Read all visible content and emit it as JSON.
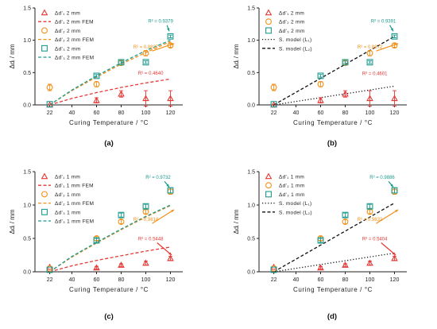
{
  "chart_data": [
    {
      "type": "scatter",
      "panel_label": "(a)",
      "xlabel": "Curing Temperature / °C",
      "ylabel": "Δdᵢ / mm",
      "xlim": [
        10,
        130
      ],
      "ylim": [
        0,
        1.5
      ],
      "xticks": [
        "22",
        "40",
        "60",
        "80",
        "100",
        "120"
      ],
      "yticks": [
        "0.0",
        "0.5",
        "1.0",
        "1.5"
      ],
      "legend": [
        {
          "label": "Δd'₁ 2 mm",
          "style": "marker-triangle",
          "color": "#e53935"
        },
        {
          "label": "Δd'₁ 2 mm FEM",
          "style": "line-dash",
          "color": "#e53935"
        },
        {
          "label": "Δd'₂ 2 mm",
          "style": "marker-circle",
          "color": "#f39019"
        },
        {
          "label": "Δd'₂ 2 mm FEM",
          "style": "line-dash",
          "color": "#f39019"
        },
        {
          "label": "Δd'₃ 2 mm",
          "style": "marker-square",
          "color": "#1e9a8f"
        },
        {
          "label": "Δd'₃ 2 mm FEM",
          "style": "line-dash",
          "color": "#1e9a8f"
        }
      ],
      "series": [
        {
          "name": "Δd'₁ 2 mm",
          "marker": "triangle",
          "color": "#e53935",
          "x": [
            22,
            60,
            80,
            100,
            120
          ],
          "y": [
            0.0,
            0.07,
            0.17,
            0.1,
            0.1
          ],
          "err": [
            0,
            0.04,
            0.05,
            0.12,
            0.12
          ]
        },
        {
          "name": "Δd'₂ 2 mm",
          "marker": "circle",
          "color": "#f39019",
          "x": [
            22,
            60,
            80,
            100,
            120
          ],
          "y": [
            0.27,
            0.32,
            0.65,
            0.8,
            0.92
          ],
          "err": [
            0.05,
            0.04,
            0.03,
            0.04,
            0.03
          ]
        },
        {
          "name": "Δd'₃ 2 mm",
          "marker": "square",
          "color": "#1e9a8f",
          "x": [
            22,
            60,
            80,
            100,
            120
          ],
          "y": [
            0.01,
            0.45,
            0.66,
            0.66,
            1.06
          ],
          "err": [
            0,
            0.02,
            0.02,
            0.02,
            0.02
          ]
        }
      ],
      "lines": [
        {
          "name": "Δd'₁ 2 mm FEM",
          "style": "dash",
          "color": "#e53935",
          "x": [
            22,
            40,
            60,
            80,
            100,
            120
          ],
          "y": [
            0,
            0.1,
            0.19,
            0.27,
            0.34,
            0.4
          ]
        },
        {
          "name": "Δd'₂ 2 mm FEM",
          "style": "dash",
          "color": "#f39019",
          "x": [
            22,
            40,
            60,
            80,
            100,
            120
          ],
          "y": [
            0,
            0.22,
            0.43,
            0.63,
            0.81,
            0.98
          ]
        },
        {
          "name": "Δd'₃ 2 mm FEM",
          "style": "dash",
          "color": "#1e9a8f",
          "x": [
            22,
            40,
            60,
            80,
            100,
            120
          ],
          "y": [
            0,
            0.23,
            0.45,
            0.65,
            0.84,
            1.0
          ]
        }
      ],
      "annotations": [
        {
          "text": "R² = 0.9379",
          "color": "#1e9a8f",
          "x": 112,
          "y": 1.27,
          "arrow_to": [
            119,
            1.14
          ]
        },
        {
          "text": "R² = 0.8827",
          "color": "#f39019",
          "x": 100,
          "y": 0.87,
          "arrow_to": [
            123,
            0.95
          ]
        },
        {
          "text": "R² = 0.4640",
          "color": "#e53935",
          "x": 104,
          "y": 0.47
        }
      ]
    },
    {
      "type": "scatter",
      "panel_label": "(b)",
      "xlabel": "Curing Temperature / °C",
      "ylabel": "Δdᵢ / mm",
      "xlim": [
        10,
        130
      ],
      "ylim": [
        0,
        1.5
      ],
      "xticks": [
        "22",
        "40",
        "60",
        "80",
        "100",
        "120"
      ],
      "yticks": [
        "0.0",
        "0.5",
        "1.0",
        "1.5"
      ],
      "legend": [
        {
          "label": "Δd'₁ 2 mm",
          "style": "marker-triangle",
          "color": "#e53935"
        },
        {
          "label": "Δd'₂ 2 mm",
          "style": "marker-circle",
          "color": "#f39019"
        },
        {
          "label": "Δd'₃ 2 mm",
          "style": "marker-square",
          "color": "#1e9a8f"
        },
        {
          "label": "S. model (L₁)",
          "style": "line-dot",
          "color": "#111111"
        },
        {
          "label": "S. model (L₂)",
          "style": "line-dash",
          "color": "#111111"
        }
      ],
      "series": [
        {
          "name": "Δd'₁ 2 mm",
          "marker": "triangle",
          "color": "#e53935",
          "x": [
            22,
            60,
            80,
            100,
            120
          ],
          "y": [
            0.0,
            0.07,
            0.17,
            0.1,
            0.1
          ],
          "err": [
            0,
            0.04,
            0.05,
            0.12,
            0.12
          ]
        },
        {
          "name": "Δd'₂ 2 mm",
          "marker": "circle",
          "color": "#f39019",
          "x": [
            22,
            60,
            80,
            100,
            120
          ],
          "y": [
            0.27,
            0.32,
            0.65,
            0.8,
            0.92
          ],
          "err": [
            0.05,
            0.04,
            0.03,
            0.04,
            0.03
          ]
        },
        {
          "name": "Δd'₃ 2 mm",
          "marker": "square",
          "color": "#1e9a8f",
          "x": [
            22,
            60,
            80,
            100,
            120
          ],
          "y": [
            0.01,
            0.45,
            0.66,
            0.66,
            1.06
          ],
          "err": [
            0,
            0.02,
            0.02,
            0.02,
            0.02
          ]
        }
      ],
      "lines": [
        {
          "name": "S. model (L₁)",
          "style": "dot",
          "color": "#111111",
          "x": [
            22,
            120
          ],
          "y": [
            0,
            0.29
          ]
        },
        {
          "name": "S. model (L₂)",
          "style": "dash",
          "color": "#111111",
          "x": [
            22,
            120
          ],
          "y": [
            0,
            1.06
          ]
        }
      ],
      "annotations": [
        {
          "text": "R² = 0.9391",
          "color": "#1e9a8f",
          "x": 111,
          "y": 1.27,
          "arrow_to": [
            119,
            1.14
          ]
        },
        {
          "text": "R² = 0.8872",
          "color": "#f39019",
          "x": 100,
          "y": 0.87,
          "arrow_to": [
            123,
            0.95
          ]
        },
        {
          "text": "R² = 0.4601",
          "color": "#e53935",
          "x": 104,
          "y": 0.46
        }
      ]
    },
    {
      "type": "scatter",
      "panel_label": "(c)",
      "xlabel": "Curing Temperature / °C",
      "ylabel": "Δdᵢ / mm",
      "xlim": [
        10,
        130
      ],
      "ylim": [
        0,
        1.5
      ],
      "xticks": [
        "22",
        "40",
        "60",
        "80",
        "100",
        "120"
      ],
      "yticks": [
        "0.0",
        "0.5",
        "1.0",
        "1.5"
      ],
      "legend": [
        {
          "label": "Δd'₁ 1 mm",
          "style": "marker-triangle",
          "color": "#e53935"
        },
        {
          "label": "Δd'₁ 1 mm FEM",
          "style": "line-dash",
          "color": "#e53935"
        },
        {
          "label": "Δd'₂ 1 mm",
          "style": "marker-circle",
          "color": "#f39019"
        },
        {
          "label": "Δd'₂ 1 mm FEM",
          "style": "line-dash",
          "color": "#f39019"
        },
        {
          "label": "Δd'₃ 1 mm",
          "style": "marker-square",
          "color": "#1e9a8f"
        },
        {
          "label": "Δd'₃ 1 mm FEM",
          "style": "line-dash",
          "color": "#1e9a8f"
        }
      ],
      "series": [
        {
          "name": "Δd'₁ 1 mm",
          "marker": "triangle",
          "color": "#e53935",
          "x": [
            22,
            60,
            80,
            100,
            120
          ],
          "y": [
            0.07,
            0.06,
            0.1,
            0.13,
            0.2
          ],
          "err": [
            0,
            0.02,
            0.02,
            0.03,
            0.03
          ]
        },
        {
          "name": "Δd'₂ 1 mm",
          "marker": "circle",
          "color": "#f39019",
          "x": [
            22,
            60,
            80,
            100,
            120
          ],
          "y": [
            0.05,
            0.5,
            0.75,
            0.9,
            1.2
          ],
          "err": [
            0,
            0.03,
            0.03,
            0.03,
            0.04
          ]
        },
        {
          "name": "Δd'₃ 1 mm",
          "marker": "square",
          "color": "#1e9a8f",
          "x": [
            22,
            60,
            80,
            100,
            120
          ],
          "y": [
            0.03,
            0.47,
            0.85,
            0.98,
            1.22
          ],
          "err": [
            0,
            0.03,
            0.03,
            0.03,
            0.04
          ]
        }
      ],
      "lines": [
        {
          "name": "Δd'₁ 1 mm FEM",
          "style": "dash",
          "color": "#e53935",
          "x": [
            22,
            40,
            60,
            80,
            100,
            120
          ],
          "y": [
            0,
            0.09,
            0.17,
            0.24,
            0.31,
            0.37
          ]
        },
        {
          "name": "Δd'₂ 1 mm FEM",
          "style": "dash",
          "color": "#f39019",
          "x": [
            22,
            40,
            60,
            80,
            100,
            120
          ],
          "y": [
            0,
            0.22,
            0.43,
            0.63,
            0.82,
            0.99
          ]
        },
        {
          "name": "Δd'₃ 1 mm FEM",
          "style": "dash",
          "color": "#1e9a8f",
          "x": [
            22,
            40,
            60,
            80,
            100,
            120
          ],
          "y": [
            0,
            0.23,
            0.44,
            0.64,
            0.83,
            1.0
          ]
        }
      ],
      "annotations": [
        {
          "text": "R² = 0.9732",
          "color": "#1e9a8f",
          "x": 110,
          "y": 1.39,
          "arrow_to": [
            119,
            1.27
          ]
        },
        {
          "text": "R² = 0.9814",
          "color": "#f39019",
          "x": 100,
          "y": 0.76,
          "arrow_to": [
            123,
            0.93
          ]
        },
        {
          "text": "R² = 0.5448",
          "color": "#e53935",
          "x": 104,
          "y": 0.47,
          "arrow_to": [
            121,
            0.25
          ]
        }
      ]
    },
    {
      "type": "scatter",
      "panel_label": "(d)",
      "xlabel": "Curing Temperature / °C",
      "ylabel": "Δdᵢ / mm",
      "xlim": [
        10,
        130
      ],
      "ylim": [
        0,
        1.5
      ],
      "xticks": [
        "22",
        "40",
        "60",
        "80",
        "100",
        "120"
      ],
      "yticks": [
        "0.0",
        "0.5",
        "1.0",
        "1.5"
      ],
      "legend": [
        {
          "label": "Δd'₁ 1 mm",
          "style": "marker-triangle",
          "color": "#e53935"
        },
        {
          "label": "Δd'₂ 1 mm",
          "style": "marker-circle",
          "color": "#f39019"
        },
        {
          "label": "Δd'₃ 1 mm",
          "style": "marker-square",
          "color": "#1e9a8f"
        },
        {
          "label": "S. model (L₁)",
          "style": "line-dot",
          "color": "#111111"
        },
        {
          "label": "S. model (L₂)",
          "style": "line-dash",
          "color": "#111111"
        }
      ],
      "series": [
        {
          "name": "Δd'₁ 1 mm",
          "marker": "triangle",
          "color": "#e53935",
          "x": [
            22,
            60,
            80,
            100,
            120
          ],
          "y": [
            0.07,
            0.06,
            0.1,
            0.13,
            0.2
          ],
          "err": [
            0,
            0.02,
            0.02,
            0.03,
            0.03
          ]
        },
        {
          "name": "Δd'₂ 1 mm",
          "marker": "circle",
          "color": "#f39019",
          "x": [
            22,
            60,
            80,
            100,
            120
          ],
          "y": [
            0.05,
            0.5,
            0.75,
            0.9,
            1.2
          ],
          "err": [
            0,
            0.03,
            0.03,
            0.03,
            0.04
          ]
        },
        {
          "name": "Δd'₃ 1 mm",
          "marker": "square",
          "color": "#1e9a8f",
          "x": [
            22,
            60,
            80,
            100,
            120
          ],
          "y": [
            0.03,
            0.47,
            0.85,
            0.98,
            1.22
          ],
          "err": [
            0,
            0.03,
            0.03,
            0.03,
            0.04
          ]
        }
      ],
      "lines": [
        {
          "name": "S. model (L₁)",
          "style": "dot",
          "color": "#111111",
          "x": [
            22,
            120
          ],
          "y": [
            0,
            0.28
          ]
        },
        {
          "name": "S. model (L₂)",
          "style": "dash",
          "color": "#111111",
          "x": [
            22,
            120
          ],
          "y": [
            0,
            1.03
          ]
        }
      ],
      "annotations": [
        {
          "text": "R² = 0.9886",
          "color": "#1e9a8f",
          "x": 110,
          "y": 1.39,
          "arrow_to": [
            119,
            1.27
          ]
        },
        {
          "text": "R² = 0.9832",
          "color": "#f39019",
          "x": 100,
          "y": 0.76,
          "arrow_to": [
            123,
            0.93
          ]
        },
        {
          "text": "R² = 0.5404",
          "color": "#e53935",
          "x": 104,
          "y": 0.47,
          "arrow_to": [
            121,
            0.25
          ]
        }
      ]
    }
  ]
}
